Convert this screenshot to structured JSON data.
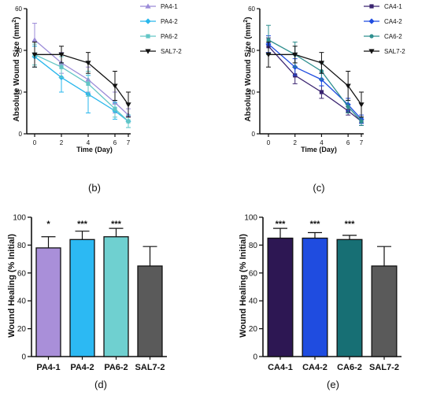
{
  "chart_data": [
    {
      "panel": "(b)",
      "type": "line",
      "xlabel": "Time (Day)",
      "ylabel": "Absolute Wound Size (mm",
      "ylabel_sup": "2",
      "ylabel_close": ")",
      "x": [
        "0",
        "2",
        "4",
        "6",
        "7"
      ],
      "x_values": [
        0,
        2,
        4,
        6,
        7
      ],
      "ylim": [
        0,
        60
      ],
      "yticks": [
        "0",
        "20",
        "40",
        "60"
      ],
      "legend_position": "top-right",
      "series": [
        {
          "name": "PA4-1",
          "color": "#9b8bd8",
          "marker": "triangle-up",
          "values": [
            45,
            34,
            26,
            15,
            9
          ],
          "err": [
            8,
            5,
            6,
            5,
            3
          ]
        },
        {
          "name": "PA4-2",
          "color": "#29b7ec",
          "marker": "diamond",
          "values": [
            37,
            27,
            19,
            11,
            6
          ],
          "err": [
            5,
            7,
            9,
            4,
            3
          ]
        },
        {
          "name": "PA6-2",
          "color": "#63c6c6",
          "marker": "square",
          "values": [
            38,
            32,
            24,
            12,
            6
          ],
          "err": [
            5,
            5,
            6,
            4,
            3
          ]
        },
        {
          "name": "SAL7-2",
          "color": "#111111",
          "marker": "triangle-down",
          "values": [
            38,
            38,
            34,
            23,
            14
          ],
          "err": [
            6,
            4,
            5,
            7,
            6
          ]
        }
      ]
    },
    {
      "panel": "(c)",
      "type": "line",
      "xlabel": "Time (Day)",
      "ylabel": "Absolute Wound Size (mm",
      "ylabel_sup": "2",
      "ylabel_close": ")",
      "x": [
        "0",
        "2",
        "4",
        "6",
        "7"
      ],
      "x_values": [
        0,
        2,
        4,
        6,
        7
      ],
      "ylim": [
        0,
        60
      ],
      "yticks": [
        "0",
        "20",
        "40",
        "60"
      ],
      "legend_position": "top-right",
      "series": [
        {
          "name": "CA4-1",
          "color": "#3a2470",
          "marker": "square",
          "values": [
            42,
            28,
            20,
            11,
            6
          ],
          "err": [
            4,
            4,
            3,
            2,
            2
          ]
        },
        {
          "name": "CA4-2",
          "color": "#1f4ce0",
          "marker": "diamond",
          "values": [
            43,
            32,
            26,
            14,
            7
          ],
          "err": [
            4,
            4,
            3,
            3,
            2
          ]
        },
        {
          "name": "CA6-2",
          "color": "#2f8f8f",
          "marker": "circle",
          "values": [
            45,
            38,
            30,
            13,
            6
          ],
          "err": [
            7,
            6,
            4,
            3,
            2
          ]
        },
        {
          "name": "SAL7-2",
          "color": "#111111",
          "marker": "triangle-down",
          "values": [
            38,
            38,
            34,
            23,
            14
          ],
          "err": [
            6,
            4,
            5,
            7,
            6
          ]
        }
      ]
    },
    {
      "panel": "(d)",
      "type": "bar",
      "ylabel": "Wound Healing (% Initial)",
      "categories": [
        "PA4-1",
        "PA4-2",
        "PA6-2",
        "SAL7-2"
      ],
      "values": [
        78,
        84,
        86,
        65
      ],
      "err": [
        8,
        6,
        6,
        14
      ],
      "colors": [
        "#a98fd9",
        "#2cb9f3",
        "#6fd0d0",
        "#5a5a5a"
      ],
      "significance": [
        "*",
        "***",
        "***",
        ""
      ],
      "ylim": [
        0,
        100
      ],
      "yticks": [
        "0",
        "20",
        "40",
        "60",
        "80",
        "100"
      ]
    },
    {
      "panel": "(e)",
      "type": "bar",
      "ylabel": "Wound Healing (% Initial)",
      "categories": [
        "CA4-1",
        "CA4-2",
        "CA6-2",
        "SAL7-2"
      ],
      "values": [
        85,
        85,
        84,
        65
      ],
      "err": [
        7,
        4,
        3,
        14
      ],
      "colors": [
        "#2d1753",
        "#1f4ce0",
        "#176f74",
        "#5a5a5a"
      ],
      "significance": [
        "***",
        "***",
        "***",
        ""
      ],
      "ylim": [
        0,
        100
      ],
      "yticks": [
        "0",
        "20",
        "40",
        "60",
        "80",
        "100"
      ]
    }
  ]
}
